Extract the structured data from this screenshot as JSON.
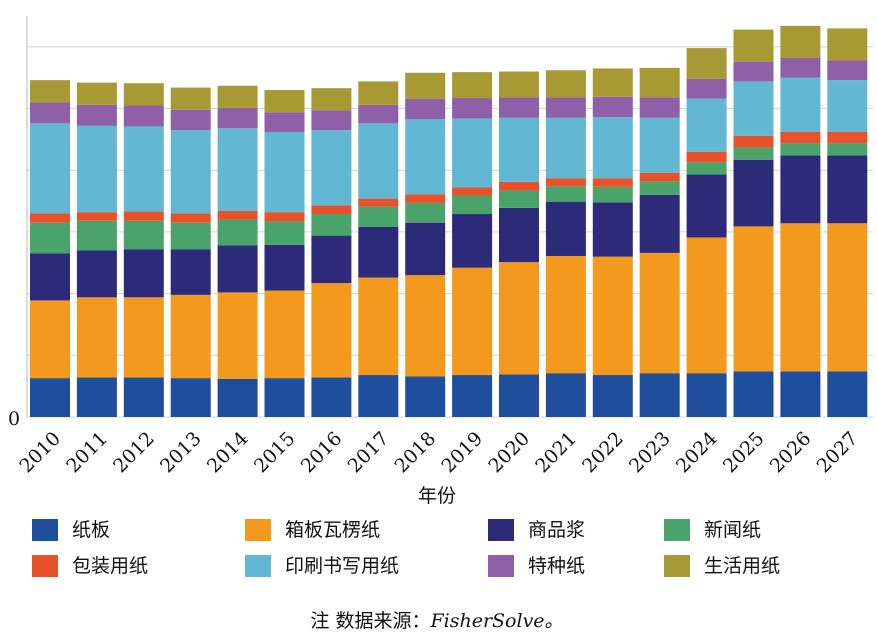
{
  "chart_data": {
    "type": "stacked_bar",
    "xlabel": "年份",
    "categories": [
      "2010",
      "2011",
      "2012",
      "2013",
      "2014",
      "2015",
      "2016",
      "2017",
      "2018",
      "2019",
      "2020",
      "2021",
      "2022",
      "2023",
      "2024",
      "2025",
      "2026",
      "2027"
    ],
    "series": [
      {
        "name": "纸板",
        "color": "#1f4e9c",
        "values": [
          0.63,
          0.64,
          0.64,
          0.63,
          0.62,
          0.63,
          0.64,
          0.68,
          0.66,
          0.68,
          0.69,
          0.71,
          0.68,
          0.71,
          0.71,
          0.74,
          0.74,
          0.74
        ]
      },
      {
        "name": "箱板瓦楞纸",
        "color": "#f39a1e",
        "values": [
          1.26,
          1.3,
          1.3,
          1.35,
          1.4,
          1.42,
          1.53,
          1.58,
          1.64,
          1.74,
          1.82,
          1.9,
          1.92,
          1.95,
          2.2,
          2.35,
          2.4,
          2.4
        ]
      },
      {
        "name": "商品浆",
        "color": "#2e2a7a",
        "values": [
          0.76,
          0.76,
          0.78,
          0.74,
          0.76,
          0.74,
          0.77,
          0.82,
          0.85,
          0.87,
          0.88,
          0.88,
          0.88,
          0.94,
          1.02,
          1.08,
          1.1,
          1.1
        ]
      },
      {
        "name": "新闻纸",
        "color": "#4aa36a",
        "values": [
          0.5,
          0.48,
          0.46,
          0.43,
          0.42,
          0.38,
          0.35,
          0.33,
          0.32,
          0.3,
          0.28,
          0.25,
          0.25,
          0.22,
          0.2,
          0.2,
          0.2,
          0.2
        ]
      },
      {
        "name": "包装用纸",
        "color": "#e8522a",
        "values": [
          0.15,
          0.14,
          0.15,
          0.15,
          0.14,
          0.15,
          0.14,
          0.13,
          0.14,
          0.13,
          0.14,
          0.13,
          0.14,
          0.14,
          0.17,
          0.19,
          0.18,
          0.18
        ]
      },
      {
        "name": "印刷书写用纸",
        "color": "#62b8d3",
        "values": [
          1.46,
          1.4,
          1.38,
          1.35,
          1.34,
          1.3,
          1.22,
          1.22,
          1.22,
          1.12,
          1.04,
          0.98,
          0.99,
          0.89,
          0.86,
          0.88,
          0.88,
          0.84
        ]
      },
      {
        "name": "特种纸",
        "color": "#8f5fa8",
        "values": [
          0.34,
          0.34,
          0.34,
          0.33,
          0.33,
          0.32,
          0.32,
          0.3,
          0.33,
          0.33,
          0.33,
          0.33,
          0.33,
          0.33,
          0.32,
          0.32,
          0.32,
          0.32
        ]
      },
      {
        "name": "生活用纸",
        "color": "#a79a34",
        "values": [
          0.36,
          0.36,
          0.36,
          0.36,
          0.36,
          0.36,
          0.36,
          0.38,
          0.42,
          0.42,
          0.42,
          0.44,
          0.46,
          0.48,
          0.5,
          0.52,
          0.52,
          0.52
        ]
      }
    ],
    "ylim": [
      0,
      6.5
    ],
    "yticks": [
      0
    ],
    "grid_lines": [
      0,
      1,
      2,
      3,
      4,
      5,
      6
    ],
    "note_label": "注  数据来源：",
    "note_source": "FisherSolve。"
  }
}
